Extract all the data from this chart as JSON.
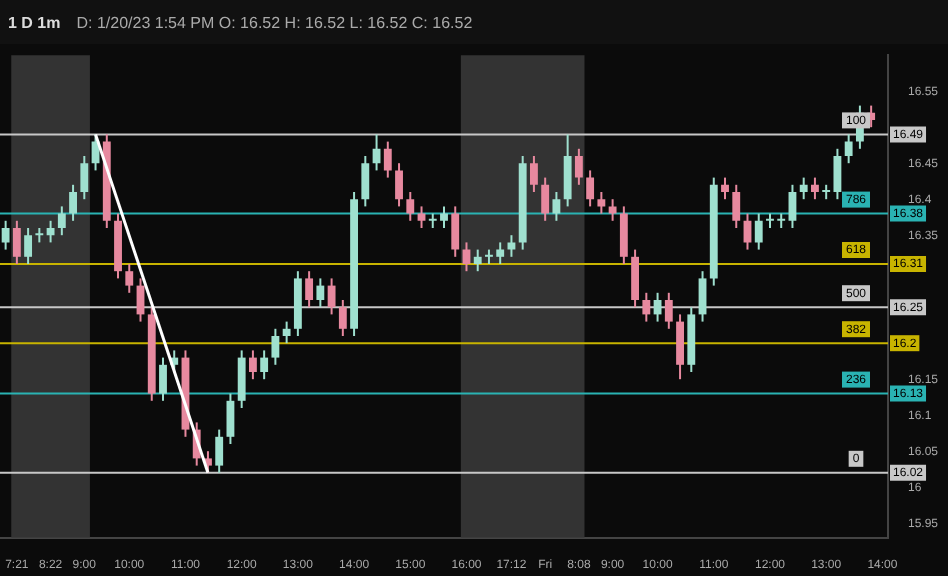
{
  "chart_data": {
    "type": "candlestick",
    "title": "1 D 1m",
    "subtitle": "D: 1/20/23 1:54 PM  O: 16.52  H: 16.52  L: 16.52  C: 16.52",
    "categories": [
      null,
      "7:21",
      null,
      null,
      "8:22",
      null,
      null,
      "9:00",
      null,
      null,
      null,
      "10:00",
      null,
      null,
      null,
      null,
      "11:00",
      null,
      null,
      null,
      null,
      "12:00",
      null,
      null,
      null,
      null,
      "13:00",
      null,
      null,
      null,
      null,
      "14:00",
      null,
      null,
      null,
      null,
      "15:00",
      null,
      null,
      null,
      null,
      "16:00",
      null,
      null,
      null,
      "17:12",
      null,
      null,
      "Fri",
      null,
      null,
      "8:08",
      null,
      null,
      "9:00",
      null,
      null,
      null,
      "10:00",
      null,
      null,
      null,
      null,
      "11:00",
      null,
      null,
      null,
      null,
      "12:00",
      null,
      null,
      null,
      null,
      "13:00",
      null,
      null,
      null,
      null,
      "14:00"
    ],
    "ohlc": [
      [
        16.34,
        16.37,
        16.33,
        16.36
      ],
      [
        16.36,
        16.37,
        16.31,
        16.32
      ],
      [
        16.32,
        16.36,
        16.31,
        16.35
      ],
      [
        16.35,
        16.36,
        16.34,
        16.35
      ],
      [
        16.35,
        16.37,
        16.34,
        16.36
      ],
      [
        16.36,
        16.39,
        16.35,
        16.38
      ],
      [
        16.38,
        16.42,
        16.37,
        16.41
      ],
      [
        16.41,
        16.46,
        16.4,
        16.45
      ],
      [
        16.45,
        16.49,
        16.44,
        16.48
      ],
      [
        16.48,
        16.49,
        16.36,
        16.37
      ],
      [
        16.37,
        16.38,
        16.29,
        16.3
      ],
      [
        16.3,
        16.31,
        16.27,
        16.28
      ],
      [
        16.28,
        16.29,
        16.23,
        16.24
      ],
      [
        16.24,
        16.25,
        16.12,
        16.13
      ],
      [
        16.13,
        16.18,
        16.12,
        16.17
      ],
      [
        16.17,
        16.19,
        16.16,
        16.18
      ],
      [
        16.18,
        16.19,
        16.07,
        16.08
      ],
      [
        16.08,
        16.09,
        16.03,
        16.04
      ],
      [
        16.04,
        16.05,
        16.02,
        16.03
      ],
      [
        16.03,
        16.08,
        16.02,
        16.07
      ],
      [
        16.07,
        16.13,
        16.06,
        16.12
      ],
      [
        16.12,
        16.19,
        16.11,
        16.18
      ],
      [
        16.18,
        16.19,
        16.15,
        16.16
      ],
      [
        16.16,
        16.19,
        16.15,
        16.18
      ],
      [
        16.18,
        16.22,
        16.17,
        16.21
      ],
      [
        16.21,
        16.23,
        16.2,
        16.22
      ],
      [
        16.22,
        16.3,
        16.21,
        16.29
      ],
      [
        16.29,
        16.3,
        16.25,
        16.26
      ],
      [
        16.26,
        16.29,
        16.25,
        16.28
      ],
      [
        16.28,
        16.29,
        16.24,
        16.25
      ],
      [
        16.25,
        16.26,
        16.21,
        16.22
      ],
      [
        16.22,
        16.41,
        16.21,
        16.4
      ],
      [
        16.4,
        16.46,
        16.39,
        16.45
      ],
      [
        16.45,
        16.49,
        16.44,
        16.47
      ],
      [
        16.47,
        16.48,
        16.43,
        16.44
      ],
      [
        16.44,
        16.45,
        16.39,
        16.4
      ],
      [
        16.4,
        16.41,
        16.37,
        16.38
      ],
      [
        16.38,
        16.39,
        16.36,
        16.37
      ],
      [
        16.37,
        16.38,
        16.36,
        16.37
      ],
      [
        16.37,
        16.39,
        16.36,
        16.38
      ],
      [
        16.38,
        16.39,
        16.32,
        16.33
      ],
      [
        16.33,
        16.34,
        16.3,
        16.31
      ],
      [
        16.31,
        16.33,
        16.3,
        16.32
      ],
      [
        16.32,
        16.33,
        16.31,
        16.32
      ],
      [
        16.32,
        16.34,
        16.31,
        16.33
      ],
      [
        16.33,
        16.35,
        16.32,
        16.34
      ],
      [
        16.34,
        16.46,
        16.33,
        16.45
      ],
      [
        16.45,
        16.46,
        16.41,
        16.42
      ],
      [
        16.42,
        16.43,
        16.37,
        16.38
      ],
      [
        16.38,
        16.41,
        16.37,
        16.4
      ],
      [
        16.4,
        16.49,
        16.39,
        16.46
      ],
      [
        16.46,
        16.47,
        16.42,
        16.43
      ],
      [
        16.43,
        16.44,
        16.39,
        16.4
      ],
      [
        16.4,
        16.41,
        16.38,
        16.39
      ],
      [
        16.39,
        16.4,
        16.37,
        16.38
      ],
      [
        16.38,
        16.39,
        16.31,
        16.32
      ],
      [
        16.32,
        16.33,
        16.25,
        16.26
      ],
      [
        16.26,
        16.27,
        16.23,
        16.24
      ],
      [
        16.24,
        16.27,
        16.23,
        16.26
      ],
      [
        16.26,
        16.27,
        16.22,
        16.23
      ],
      [
        16.23,
        16.24,
        16.15,
        16.17
      ],
      [
        16.17,
        16.25,
        16.16,
        16.24
      ],
      [
        16.24,
        16.3,
        16.23,
        16.29
      ],
      [
        16.29,
        16.43,
        16.28,
        16.42
      ],
      [
        16.42,
        16.43,
        16.4,
        16.41
      ],
      [
        16.41,
        16.42,
        16.36,
        16.37
      ],
      [
        16.37,
        16.38,
        16.33,
        16.34
      ],
      [
        16.34,
        16.38,
        16.33,
        16.37
      ],
      [
        16.37,
        16.38,
        16.36,
        16.37
      ],
      [
        16.37,
        16.38,
        16.36,
        16.37
      ],
      [
        16.37,
        16.42,
        16.36,
        16.41
      ],
      [
        16.41,
        16.43,
        16.4,
        16.42
      ],
      [
        16.42,
        16.43,
        16.4,
        16.41
      ],
      [
        16.41,
        16.42,
        16.4,
        16.41
      ],
      [
        16.41,
        16.47,
        16.4,
        16.46
      ],
      [
        16.46,
        16.49,
        16.45,
        16.48
      ],
      [
        16.48,
        16.53,
        16.47,
        16.52
      ],
      [
        16.52,
        16.53,
        16.5,
        16.51
      ],
      null
    ],
    "colors": [
      "#9fe0cf",
      "#e7899f",
      "#9fe0cf",
      "#9fe0cf",
      "#9fe0cf",
      "#9fe0cf",
      "#9fe0cf",
      "#9fe0cf",
      "#9fe0cf",
      "#e7899f",
      "#e7899f",
      "#e7899f",
      "#e7899f",
      "#e7899f",
      "#9fe0cf",
      "#9fe0cf",
      "#e7899f",
      "#e7899f",
      "#e7899f",
      "#9fe0cf",
      "#9fe0cf",
      "#9fe0cf",
      "#e7899f",
      "#9fe0cf",
      "#9fe0cf",
      "#9fe0cf",
      "#9fe0cf",
      "#e7899f",
      "#9fe0cf",
      "#e7899f",
      "#e7899f",
      "#9fe0cf",
      "#9fe0cf",
      "#9fe0cf",
      "#e7899f",
      "#e7899f",
      "#e7899f",
      "#e7899f",
      "#9fe0cf",
      "#9fe0cf",
      "#e7899f",
      "#e7899f",
      "#9fe0cf",
      "#9fe0cf",
      "#9fe0cf",
      "#9fe0cf",
      "#9fe0cf",
      "#e7899f",
      "#e7899f",
      "#9fe0cf",
      "#9fe0cf",
      "#e7899f",
      "#e7899f",
      "#e7899f",
      "#e7899f",
      "#e7899f",
      "#e7899f",
      "#e7899f",
      "#9fe0cf",
      "#e7899f",
      "#e7899f",
      "#9fe0cf",
      "#9fe0cf",
      "#9fe0cf",
      "#e7899f",
      "#e7899f",
      "#e7899f",
      "#9fe0cf",
      "#9fe0cf",
      "#9fe0cf",
      "#9fe0cf",
      "#9fe0cf",
      "#e7899f",
      "#9fe0cf",
      "#9fe0cf",
      "#9fe0cf",
      "#9fe0cf",
      "#e7899f",
      null
    ],
    "series": [
      {
        "type": "line",
        "color": "#ffffff",
        "values": [
          null,
          null,
          null,
          null,
          null,
          null,
          null,
          null,
          16.49,
          null,
          null,
          null,
          null,
          null,
          null,
          null,
          null,
          null,
          16.02,
          null,
          null,
          null,
          null,
          null,
          null,
          null,
          null,
          null,
          null,
          null,
          null,
          null,
          null,
          null,
          null,
          null,
          null,
          null,
          null,
          null,
          null,
          null,
          null,
          null,
          null,
          null,
          null,
          null,
          null,
          null,
          null,
          null,
          null,
          null,
          null,
          null,
          null,
          null,
          null,
          null,
          null,
          null,
          null,
          null,
          null,
          null,
          null,
          null,
          null,
          null,
          null,
          null,
          null,
          null,
          null,
          null,
          null,
          null,
          null
        ]
      }
    ],
    "ylim": [
      15.93,
      16.6
    ],
    "yticks": [
      15.95,
      16,
      16.05,
      16.1,
      16.15,
      16.35,
      16.4,
      16.45,
      16.55
    ],
    "ref_lines": [
      {
        "axis": "y",
        "value": 16.49,
        "label": "16.49",
        "color": "#c8c8c8"
      },
      {
        "axis": "y",
        "value": 16.38,
        "label": "16.38",
        "color": "#2ab3b3"
      },
      {
        "axis": "y",
        "value": 16.31,
        "label": "16.31",
        "color": "#c8b400"
      },
      {
        "axis": "y",
        "value": 16.25,
        "label": "16.25",
        "color": "#c8c8c8"
      },
      {
        "axis": "y",
        "value": 16.2,
        "label": "16.2",
        "color": "#c8b400"
      },
      {
        "axis": "y",
        "value": 16.13,
        "label": "16.13",
        "color": "#2ab3b3"
      },
      {
        "axis": "y",
        "value": 16.02,
        "label": "16.02",
        "color": "#c8c8c8"
      }
    ],
    "annotations": [
      {
        "text": "100",
        "y": 16.49
      },
      {
        "text": "786",
        "y": 16.38
      },
      {
        "text": "618",
        "y": 16.31
      },
      {
        "text": "500",
        "y": 16.25
      },
      {
        "text": "382",
        "y": 16.2
      },
      {
        "text": "236",
        "y": 16.13
      },
      {
        "text": "0",
        "y": 16.02
      }
    ],
    "bands": [
      {
        "axis": "x",
        "from": "7:21",
        "to": "9:00",
        "color": "#333333"
      },
      {
        "axis": "x",
        "from": "16:00",
        "to": "8:08",
        "color": "#333333"
      }
    ],
    "legend": false
  }
}
